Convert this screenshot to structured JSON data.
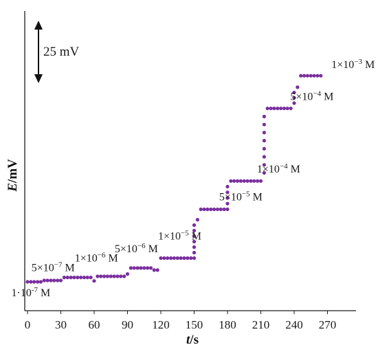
{
  "chart_data": {
    "type": "scatter",
    "xlabel_var": "t",
    "xlabel_unit": "/s",
    "ylabel_var": "E",
    "ylabel_unit": "/mV",
    "xlim": [
      0,
      270
    ],
    "x_ticks": [
      0,
      30,
      60,
      90,
      120,
      150,
      180,
      210,
      240,
      270
    ],
    "y_ticks_shown": false,
    "grid": false,
    "legend": "none",
    "marker_color": "#7a2e9e",
    "scale_bar": {
      "label": "25 mV",
      "span_mV": 25
    },
    "step_interval_s": 3,
    "steps": [
      {
        "t_start": 0,
        "t_end": 12,
        "E": 0.0
      },
      {
        "t_start": 15,
        "t_end": 30,
        "E": 0.6
      },
      {
        "t_start": 33,
        "t_end": 57,
        "E": 1.9
      },
      {
        "t_start": 60,
        "t_end": 60,
        "E": 0.4
      },
      {
        "t_start": 63,
        "t_end": 87,
        "E": 2.4
      },
      {
        "t_start": 90,
        "t_end": 90,
        "E": 3.4
      },
      {
        "t_start": 93,
        "t_end": 111,
        "E": 6.0
      },
      {
        "t_start": 114,
        "t_end": 117,
        "E": 5.1
      },
      {
        "t_start": 120,
        "t_end": 150,
        "E": 10.3
      },
      {
        "t_start": 153,
        "t_end": 153,
        "E": 27.0
      },
      {
        "t_start": 156,
        "t_end": 180,
        "E": 31.5
      },
      {
        "t_start": 183,
        "t_end": 210,
        "E": 43.8
      },
      {
        "t_start": 216,
        "t_end": 237,
        "E": 75.3
      },
      {
        "t_start": 243,
        "t_end": 243,
        "E": 84.5
      },
      {
        "t_start": 246,
        "t_end": 264,
        "E": 89.5
      }
    ],
    "transitions": [
      {
        "t": 150,
        "E_from": 10.3,
        "E_to": 27.0,
        "n": 6
      },
      {
        "t": 180,
        "E_from": 31.5,
        "E_to": 43.8,
        "n": 4
      },
      {
        "t": 213,
        "E_from": 43.8,
        "E_to": 75.3,
        "n": 8
      },
      {
        "t": 240,
        "E_from": 75.3,
        "E_to": 84.5,
        "n": 3
      }
    ],
    "annotations": [
      {
        "mantissa": "1·10",
        "exp": "-7",
        "unit": " M",
        "t": 3,
        "E": -6.3
      },
      {
        "mantissa": "5×10",
        "exp": "−7",
        "unit": " M",
        "t": 23,
        "E": 4.6
      },
      {
        "mantissa": "1×10",
        "exp": "−6",
        "unit": " M",
        "t": 62,
        "E": 8.8
      },
      {
        "mantissa": "5×10",
        "exp": "−6",
        "unit": " M",
        "t": 98,
        "E": 12.9
      },
      {
        "mantissa": "1×10",
        "exp": "−5",
        "unit": " M",
        "t": 137,
        "E": 18.4
      },
      {
        "mantissa": "5×10",
        "exp": "−5",
        "unit": " M",
        "t": 192,
        "E": 35.4
      },
      {
        "mantissa": "1×10",
        "exp": "−4",
        "unit": " M",
        "t": 226,
        "E": 47.4
      },
      {
        "mantissa": "5×10",
        "exp": "−4",
        "unit": " M",
        "t": 256,
        "E": 78.9
      },
      {
        "mantissa": "1×10",
        "exp": "−3",
        "unit": " M",
        "t": 293,
        "E": 92.9
      }
    ]
  }
}
